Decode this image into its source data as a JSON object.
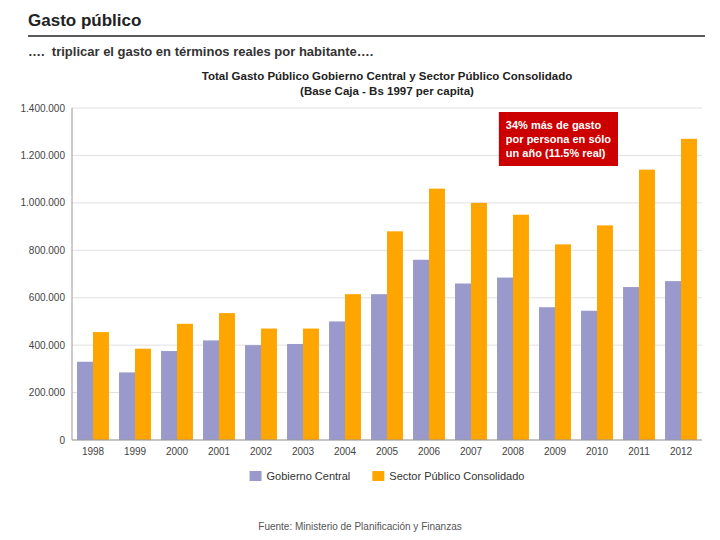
{
  "chart_data": {
    "type": "bar",
    "title": "Gasto público",
    "subtitle": "….  triplicar el gasto en términos reales por habitante….",
    "chart_title": [
      "Total Gasto Público Gobierno Central y Sector Público Consolidado",
      "(Base Caja - Bs 1997 per capita)"
    ],
    "source": "Fuente: Ministerio de Planificación y Finanzas",
    "annotations": [
      {
        "text": "34% más de gasto\npor persona en sólo\nun año (11.5% real)",
        "color": "#CC0000"
      }
    ],
    "categories": [
      "1998",
      "1999",
      "2000",
      "2001",
      "2002",
      "2003",
      "2004",
      "2005",
      "2006",
      "2007",
      "2008",
      "2009",
      "2010",
      "2011",
      "2012"
    ],
    "series": [
      {
        "name": "Gobierno Central",
        "color": "#9999CC",
        "values": [
          330000,
          285000,
          375000,
          420000,
          400000,
          405000,
          500000,
          615000,
          760000,
          660000,
          685000,
          560000,
          545000,
          645000,
          670000
        ]
      },
      {
        "name": "Sector Público Consolidado",
        "color": "#FFA500",
        "values": [
          455000,
          385000,
          490000,
          535000,
          470000,
          470000,
          615000,
          880000,
          1060000,
          1000000,
          950000,
          825000,
          905000,
          1140000,
          1270000
        ]
      }
    ],
    "ylim": [
      0,
      1400000
    ],
    "yticks": [
      0,
      {
        "value": 200000,
        "label": "200.000"
      },
      {
        "value": 400000,
        "label": "400.000"
      },
      {
        "value": 600000,
        "label": "600.000"
      },
      {
        "value": 800000,
        "label": "800.000"
      },
      {
        "value": 1000000,
        "label": "1.000.000"
      },
      {
        "value": 1200000,
        "label": "1.200.000"
      },
      {
        "value": 1400000,
        "label": "1.400.000"
      }
    ],
    "grid": true,
    "legend": "bottom"
  }
}
